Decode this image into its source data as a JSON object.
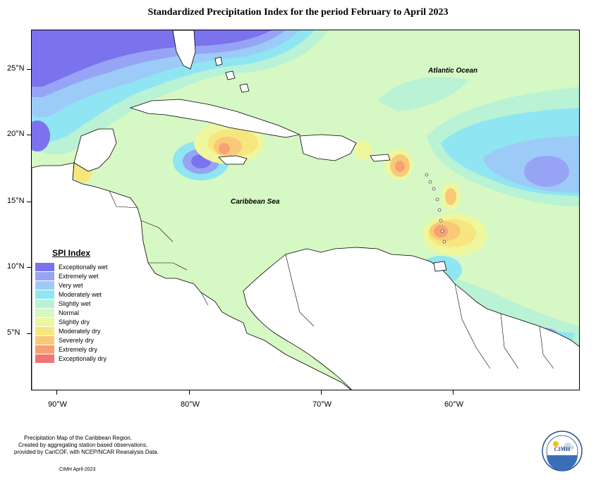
{
  "title": "Standardized Precipitation Index for the period February to April 2023",
  "axes": {
    "lat_labels": [
      "25°N",
      "20°N",
      "15°N",
      "10°N",
      "5°N"
    ],
    "lon_labels": [
      "90°W",
      "80°W",
      "70°W",
      "60°W"
    ]
  },
  "labels": {
    "atlantic": "Atlantic Ocean",
    "caribbean": "Caribbean Sea"
  },
  "legend": {
    "title": "SPI Index",
    "items": [
      {
        "label": "Exceptionally wet",
        "color": "#7b72ee"
      },
      {
        "label": "Extremely wet",
        "color": "#97a4f5"
      },
      {
        "label": "Very wet",
        "color": "#9dcbf7"
      },
      {
        "label": "Moderately wet",
        "color": "#8fe6f2"
      },
      {
        "label": "Slightly wet",
        "color": "#b9f2d5"
      },
      {
        "label": "Normal",
        "color": "#d6f8c4"
      },
      {
        "label": "Slightly dry",
        "color": "#eef79d"
      },
      {
        "label": "Moderately dry",
        "color": "#f7e67e"
      },
      {
        "label": "Severely dry",
        "color": "#f9c977"
      },
      {
        "label": "Extremely dry",
        "color": "#f7a173"
      },
      {
        "label": "Exceptionally dry",
        "color": "#f07575"
      }
    ]
  },
  "credits": {
    "line1": "Precipitation Map of the Caribbean Region.",
    "line2": "Created by aggregating station based observations,",
    "line3": "provided by CariCOF, with NCEP/NCAR Reanalysis Data.",
    "date": "CIMH April-2023",
    "logo_text": "CIMH"
  }
}
